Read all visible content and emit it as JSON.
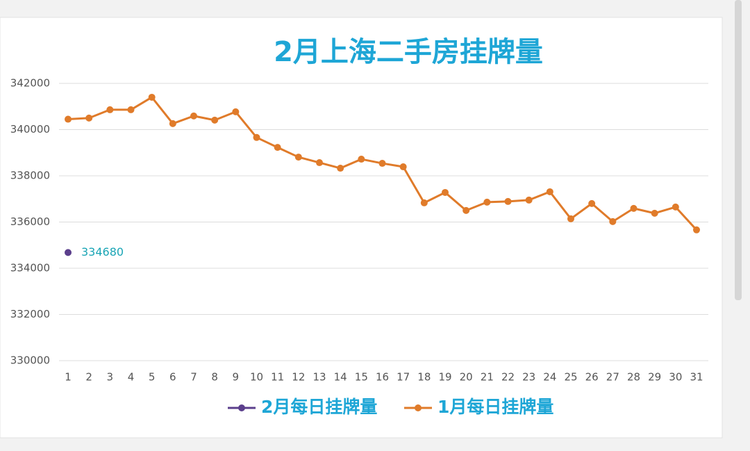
{
  "chart_data": {
    "type": "line",
    "title": "2月上海二手房挂牌量",
    "categories": [
      1,
      2,
      3,
      4,
      5,
      6,
      7,
      8,
      9,
      10,
      11,
      12,
      13,
      14,
      15,
      16,
      17,
      18,
      19,
      20,
      21,
      22,
      23,
      24,
      25,
      26,
      27,
      28,
      29,
      30,
      31
    ],
    "series": [
      {
        "name": "2月每日挂牌量",
        "color": "#5b3f8c",
        "values": [
          334680,
          null,
          null,
          null,
          null,
          null,
          null,
          null,
          null,
          null,
          null,
          null,
          null,
          null,
          null,
          null,
          null,
          null,
          null,
          null,
          null,
          null,
          null,
          null,
          null,
          null,
          null,
          null,
          null,
          null,
          null
        ]
      },
      {
        "name": "1月每日挂牌量",
        "color": "#e07b2a",
        "values": [
          340450,
          340500,
          340860,
          340860,
          341400,
          340260,
          340590,
          340410,
          340770,
          339660,
          339230,
          338810,
          338570,
          338330,
          338720,
          338540,
          338390,
          336830,
          337280,
          336500,
          336860,
          336890,
          336950,
          337310,
          336140,
          336800,
          336020,
          336590,
          336380,
          336650,
          335660
        ]
      }
    ],
    "ylim": [
      330000,
      342000
    ],
    "yticks": [
      330000,
      332000,
      334000,
      336000,
      338000,
      340000,
      342000
    ],
    "grid": true,
    "legend": "bottom"
  }
}
